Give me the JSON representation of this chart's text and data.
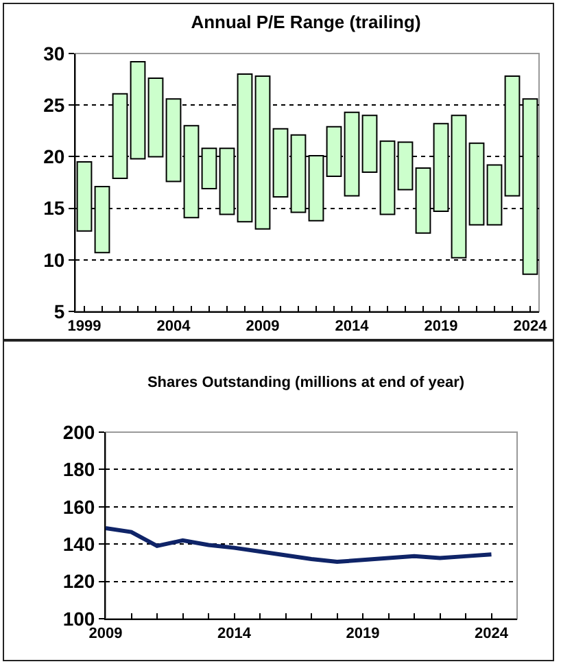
{
  "chart_data": [
    {
      "type": "bar",
      "title": "Annual P/E Range (trailing)",
      "x": [
        1999,
        2000,
        2001,
        2002,
        2003,
        2004,
        2005,
        2006,
        2007,
        2008,
        2009,
        2010,
        2011,
        2012,
        2013,
        2014,
        2015,
        2016,
        2017,
        2018,
        2019,
        2020,
        2021,
        2022,
        2023,
        2024
      ],
      "base": [
        12.8,
        10.7,
        17.9,
        19.8,
        20.0,
        17.6,
        14.1,
        16.9,
        14.4,
        13.7,
        13.0,
        16.1,
        14.6,
        13.8,
        18.1,
        16.2,
        18.5,
        14.4,
        16.8,
        12.6,
        14.7,
        10.2,
        13.4,
        13.4,
        16.2,
        8.6
      ],
      "values": [
        6.7,
        6.4,
        8.2,
        9.4,
        7.6,
        8.0,
        8.9,
        3.9,
        6.4,
        14.3,
        14.8,
        6.6,
        7.5,
        6.3,
        4.8,
        8.1,
        5.5,
        7.1,
        4.6,
        6.3,
        8.5,
        13.8,
        7.9,
        5.8,
        11.6,
        17.0
      ],
      "color": "#ccffcc",
      "xlim": [
        1998.5,
        2024.5
      ],
      "xticks": [
        1999,
        {
          "value": 2000,
          "label": null
        },
        {
          "value": 2001,
          "label": null
        },
        {
          "value": 2002,
          "label": null
        },
        {
          "value": 2003,
          "label": null
        },
        2004,
        {
          "value": 2005,
          "label": null
        },
        {
          "value": 2006,
          "label": null
        },
        {
          "value": 2007,
          "label": null
        },
        {
          "value": 2008,
          "label": null
        },
        2009,
        {
          "value": 2010,
          "label": null
        },
        {
          "value": 2011,
          "label": null
        },
        {
          "value": 2012,
          "label": null
        },
        {
          "value": 2013,
          "label": null
        },
        2014,
        {
          "value": 2015,
          "label": null
        },
        {
          "value": 2016,
          "label": null
        },
        {
          "value": 2017,
          "label": null
        },
        {
          "value": 2018,
          "label": null
        },
        2019,
        {
          "value": 2020,
          "label": null
        },
        {
          "value": 2021,
          "label": null
        },
        {
          "value": 2022,
          "label": null
        },
        {
          "value": 2023,
          "label": null
        },
        2024
      ],
      "ylim": [
        5,
        30
      ],
      "yticks": [
        5,
        10,
        15,
        20,
        25,
        30
      ],
      "grid": "y"
    },
    {
      "type": "line",
      "title": "Shares Outstanding (millions at end of year)",
      "x": [
        2009,
        2010,
        2011,
        2012,
        2013,
        2014,
        2015,
        2016,
        2017,
        2018,
        2019,
        2020,
        2021,
        2022,
        2023,
        2024
      ],
      "series": [
        {
          "color": "#0f2468",
          "values": [
            148.5,
            146.5,
            139,
            142,
            139.5,
            138,
            136,
            134,
            132,
            130.5,
            131.5,
            132.5,
            133.5,
            132.5,
            133.5,
            134.5
          ]
        }
      ],
      "xlim": [
        2009,
        2025
      ],
      "xticks": [
        2009,
        {
          "value": 2010,
          "label": null
        },
        {
          "value": 2011,
          "label": null
        },
        {
          "value": 2012,
          "label": null
        },
        {
          "value": 2013,
          "label": null
        },
        2014,
        {
          "value": 2015,
          "label": null
        },
        {
          "value": 2016,
          "label": null
        },
        {
          "value": 2017,
          "label": null
        },
        {
          "value": 2018,
          "label": null
        },
        2019,
        {
          "value": 2020,
          "label": null
        },
        {
          "value": 2021,
          "label": null
        },
        {
          "value": 2022,
          "label": null
        },
        {
          "value": 2023,
          "label": null
        },
        2024
      ],
      "ylim": [
        100,
        200
      ],
      "yticks": [
        100,
        120,
        140,
        160,
        180,
        200
      ],
      "grid": "y",
      "marker": "none",
      "line_style": "solid"
    }
  ]
}
